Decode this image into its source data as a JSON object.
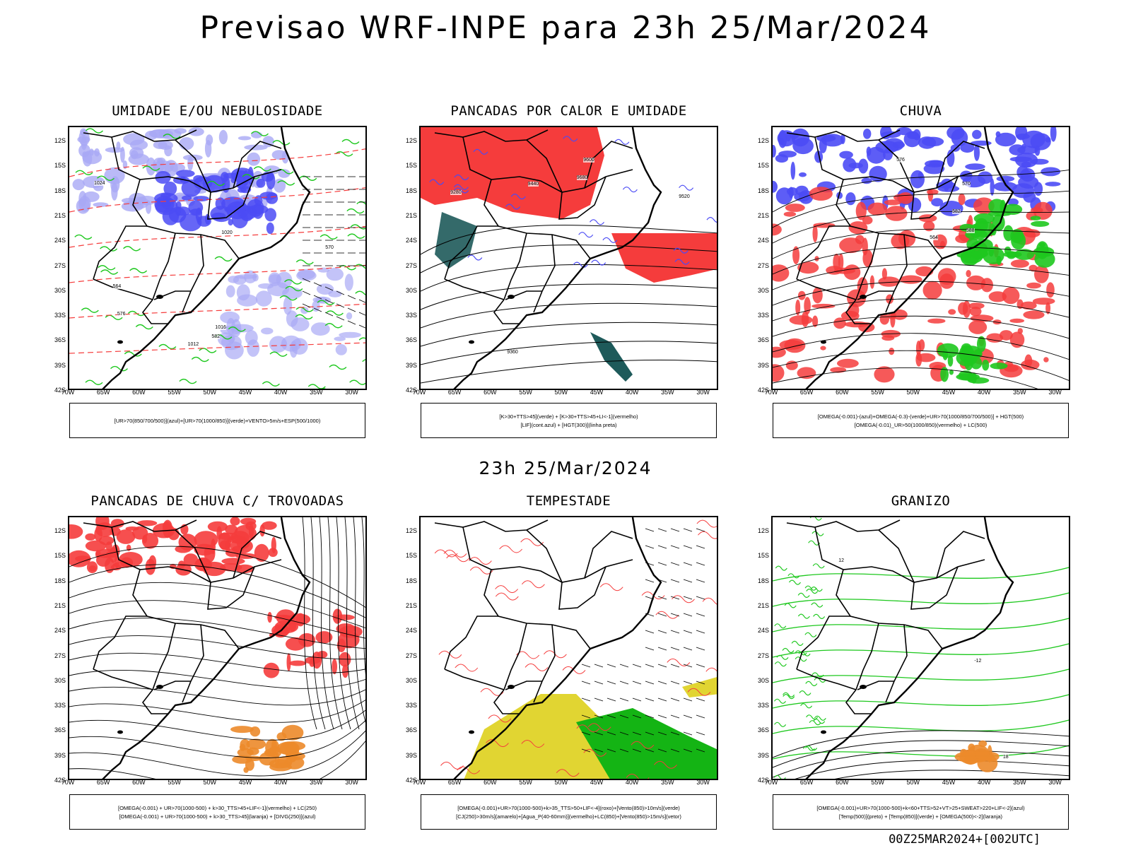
{
  "title": "Previsao WRF-INPE  para 23h 25/Mar/2024",
  "subtitle": "23h 25/Mar/2024",
  "footer": "00Z25MAR2024+[002UTC]",
  "axes": {
    "lat_labels": [
      "12S",
      "15S",
      "18S",
      "21S",
      "24S",
      "27S",
      "30S",
      "33S",
      "36S",
      "39S",
      "42S"
    ],
    "lon_labels": [
      "70W",
      "65W",
      "60W",
      "55W",
      "50W",
      "45W",
      "40W",
      "35W",
      "30W"
    ]
  },
  "colors": {
    "blue": "#4b4bf5",
    "light_blue": "#a9a9f5",
    "green": "#1ec81e",
    "red": "#f53c3c",
    "orange": "#ec8a2a",
    "yellow": "#e1d532",
    "dark_green": "#1e5a5a",
    "grass_green": "#14b414"
  },
  "panels": [
    {
      "title": "UMIDADE E/OU NEBULOSIDADE",
      "legend": [
        "[UR>70(850/700/500)](azul)+[UR>70(1000/850)](verde)+VENTO>5m/s+ESP(500/1000)"
      ],
      "contour_labels": [
        "1012",
        "1016",
        "1020",
        "1024",
        "570",
        "576",
        "582",
        "564"
      ]
    },
    {
      "title": "PANCADAS POR CALOR E UMIDADE",
      "legend": [
        "[K>30+TTS>45](verde) + [K>30+TTS>45+LI<-1](vermelho)",
        "[LIF](cont.azul) + [HGT(300)](linha preta)"
      ],
      "contour_labels": [
        "9680",
        "9600",
        "9520",
        "9440",
        "9360",
        "9280"
      ]
    },
    {
      "title": "CHUVA",
      "legend": [
        "[OMEGA(-0.001)-(azul)+OMEGA(-0.3)-(verde)+UR>70(1000/850/700/500)] + HGT(500)",
        "[OMEGA(-0.01)_UR>50(1000/850)(vermelho) + LC(500)"
      ],
      "contour_labels": [
        "588",
        "582",
        "576",
        "570",
        "564"
      ]
    },
    {
      "title": "PANCADAS DE CHUVA C/ TROVOADAS",
      "legend": [
        "[OMEGA(-0.001) + UR>70(1000-500) + k>30_TTS>45+LIF<-1](vermelho) + LC(250)",
        "[OMEGA(-0.001) + UR>70(1000-500) + k>30_TTS>45](laranja) + [DIVG(250)](azul)"
      ],
      "contour_labels": []
    },
    {
      "title": "TEMPESTADE",
      "legend": [
        "[OMEGA(-0.001)+UR>70(1000-500)+k>35_TTS>50+LIF<-4](roxo)+[Vento(850)>10m/s](verde)",
        "[CJ(250)>30m/s](amarelo)+[Agua_P(40-60mm)](vermelho)+LC(850)+[Vento(850)>15m/s](vetor)"
      ],
      "contour_labels": []
    },
    {
      "title": "GRANIZO",
      "legend": [
        "[OMEGA(-0.001)+UR>70(1000-500)+k<60+TTS>52+VT>25+SWEAT>220+LIF<-2](azul)",
        "[Temp(500)](preto) + [Temp(850)](verde) + [OMEGA(500)<-2](laranja)"
      ],
      "contour_labels": [
        "12",
        "18",
        "-12"
      ]
    }
  ]
}
